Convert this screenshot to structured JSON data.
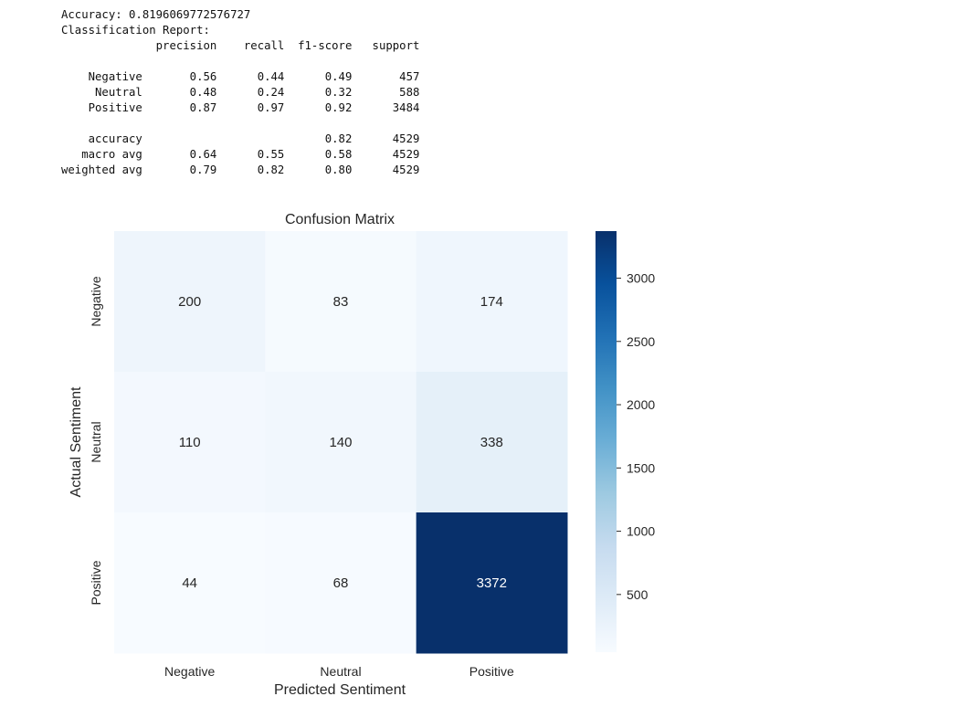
{
  "report": {
    "lines": [
      "Accuracy: 0.8196069772576727",
      "Classification Report:",
      "              precision    recall  f1-score   support",
      "",
      "    Negative       0.56      0.44      0.49       457",
      "     Neutral       0.48      0.24      0.32       588",
      "    Positive       0.87      0.97      0.92      3484",
      "",
      "    accuracy                           0.82      4529",
      "   macro avg       0.64      0.55      0.58      4529",
      "weighted avg       0.79      0.82      0.80      4529"
    ]
  },
  "chart_data": {
    "type": "heatmap",
    "title": "Confusion Matrix",
    "xlabel": "Predicted Sentiment",
    "ylabel": "Actual Sentiment",
    "x_categories": [
      "Negative",
      "Neutral",
      "Positive"
    ],
    "y_categories": [
      "Negative",
      "Neutral",
      "Positive"
    ],
    "values": [
      [
        200,
        83,
        174
      ],
      [
        110,
        140,
        338
      ],
      [
        44,
        68,
        3372
      ]
    ],
    "colormap": "Blues",
    "colorbar": {
      "ticks": [
        500,
        1000,
        1500,
        2000,
        2500,
        3000
      ],
      "range": [
        44,
        3372
      ]
    },
    "colors": {
      "low": "#f7fbff",
      "high": "#08306b"
    }
  }
}
